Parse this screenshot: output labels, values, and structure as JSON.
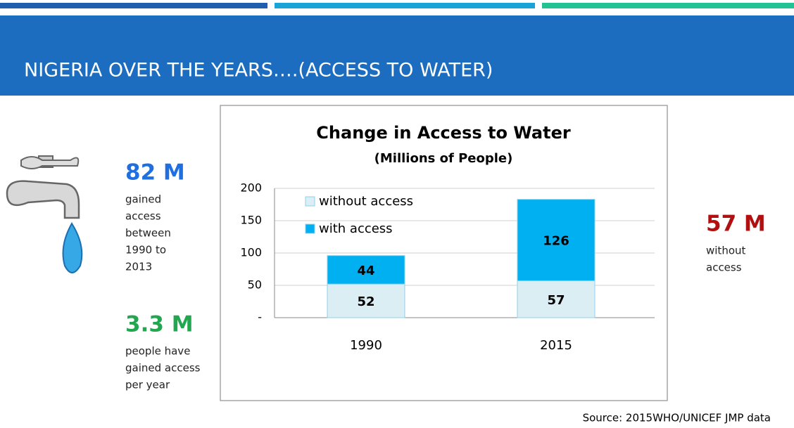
{
  "header": {
    "title": "NIGERIA  OVER THE YEARS….(ACCESS TO WATER)"
  },
  "stats": [
    {
      "figure": "82 M",
      "lines": [
        "gained",
        "access",
        "between",
        "1990 to",
        "2013"
      ]
    },
    {
      "figure": "3.3 M",
      "lines": [
        "people have",
        "gained access",
        "per year"
      ]
    },
    {
      "figure": "57 M",
      "lines": [
        "without",
        "access"
      ]
    }
  ],
  "chart_data": {
    "type": "stacked-bar",
    "title": "Change in Access to Water",
    "subtitle": "(Millions of People)",
    "categories": [
      "1990",
      "2015"
    ],
    "series": [
      {
        "name": "without access",
        "color": "#dbeef4",
        "values": [
          52,
          57
        ]
      },
      {
        "name": "with access",
        "color": "#00b0f0",
        "values": [
          44,
          126
        ]
      }
    ],
    "ylim": [
      0,
      200
    ],
    "yticks": [
      {
        "value": 0,
        "label": "-"
      },
      50,
      100,
      150,
      200
    ],
    "grid": true,
    "legend": "top-left"
  },
  "source": "Source: 2015WHO/UNICEF JMP data"
}
